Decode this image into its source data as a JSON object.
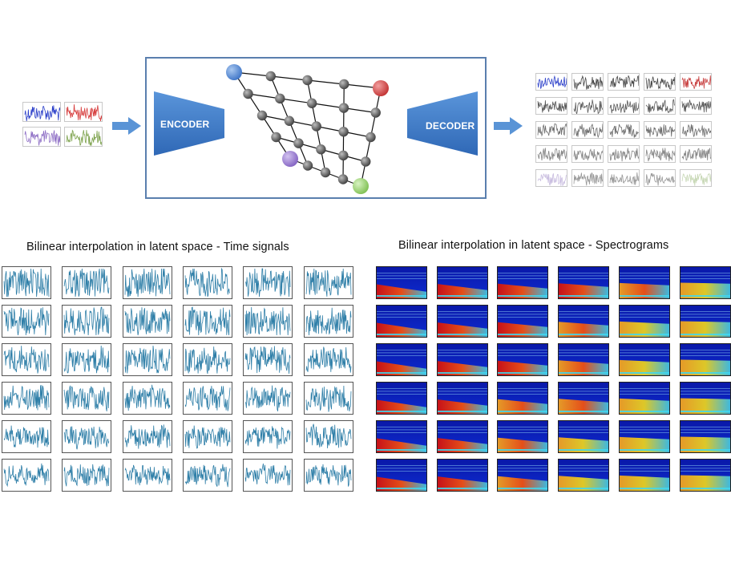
{
  "diagram": {
    "encoder_label": "ENCODER",
    "decoder_label": "DECODER",
    "corner_colors": {
      "top_left": "#5b8fd8",
      "top_right": "#d84c4c",
      "bottom_left": "#9a7fce",
      "bottom_right": "#9ad47a"
    },
    "node_color": "#666666",
    "block_color": "#3f7cc8",
    "arrow_color": "#5a94d6",
    "input_signal_colors": [
      "#2b3fc9",
      "#d63b3b",
      "#8c6cc4",
      "#7ea34e"
    ],
    "output_grid": {
      "rows": 5,
      "cols": 5,
      "corner_colors": {
        "top_left": "#2b3fc9",
        "top_right": "#c94444",
        "bottom_left": "#9a85c4",
        "bottom_right": "#9bb87a"
      },
      "middle_color": "#444444"
    }
  },
  "time_signals": {
    "title": "Bilinear interpolation in latent space - Time signals",
    "rows": 6,
    "cols": 6,
    "line_color": "#2f7fa8"
  },
  "spectrograms": {
    "title": "Bilinear interpolation in latent space - Spectrograms",
    "rows": 6,
    "cols": 6
  }
}
